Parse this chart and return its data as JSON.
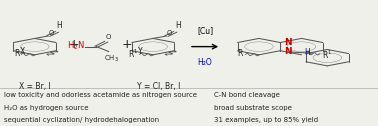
{
  "figsize": [
    3.78,
    1.26
  ],
  "dpi": 100,
  "bg_color": "#f0f0eb",
  "bottom_left_lines": [
    "low toxicity and odorless acetamide as nitrogen source",
    "H₂O as hydrogen source",
    "sequential cyclization/ hydrodehalogenation"
  ],
  "bottom_right_lines": [
    "C-N bond cleavage",
    "broad substrate scope",
    "31 examples, up to 85% yield"
  ],
  "n_color": "#cc0000",
  "h_color": "#0000cc",
  "h2o_color": "#0000cc",
  "nh2_color": "#cc0000",
  "text_color": "#222222"
}
